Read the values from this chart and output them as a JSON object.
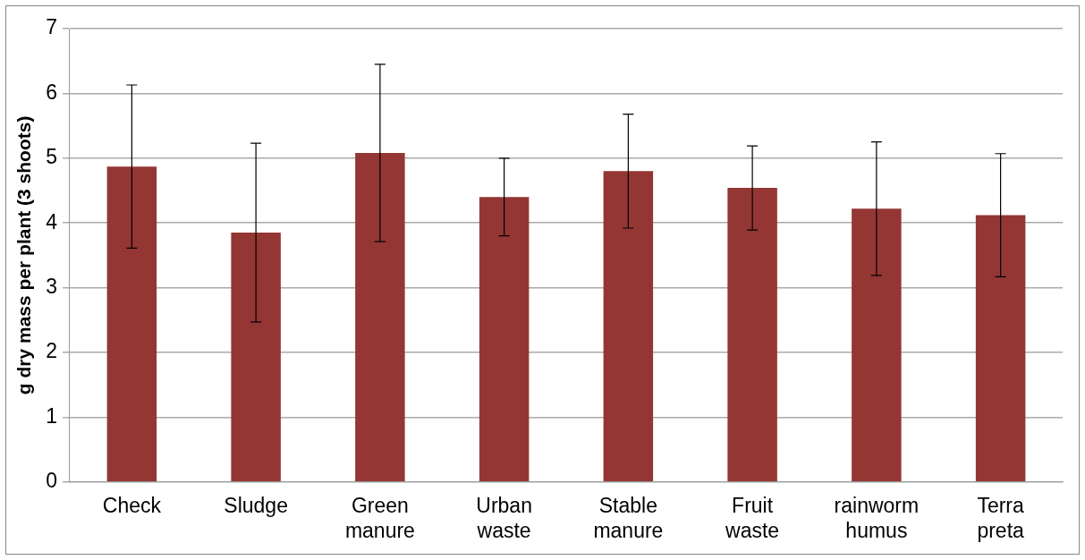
{
  "chart_data": {
    "type": "bar",
    "ylabel": "g dry mass per plant (3 shoots)",
    "categories": [
      "Check",
      "Sludge",
      "Green manure",
      "Urban waste",
      "Stable manure",
      "Fruit waste",
      "rainworm humus",
      "Terra preta"
    ],
    "values": [
      4.87,
      3.85,
      5.08,
      4.4,
      4.8,
      4.54,
      4.22,
      4.12
    ],
    "errors": [
      1.26,
      1.38,
      1.37,
      0.6,
      0.88,
      0.65,
      1.03,
      0.95
    ],
    "color": "#943634",
    "ylim": [
      0,
      7
    ],
    "yticks": [
      0,
      1,
      2,
      3,
      4,
      5,
      6,
      7
    ],
    "grid": "y",
    "legend": false
  }
}
